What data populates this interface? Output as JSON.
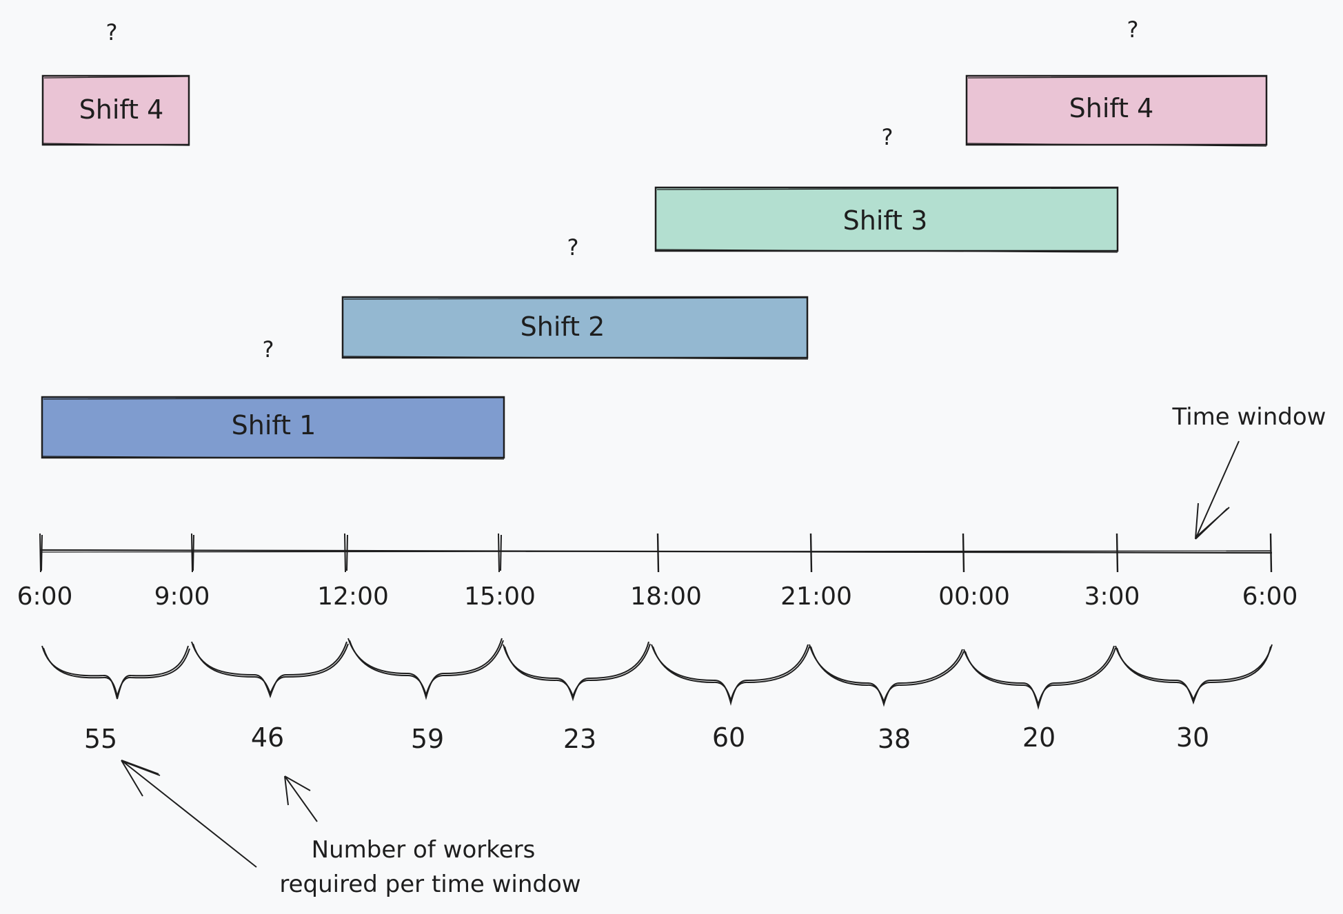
{
  "shifts": [
    {
      "id": "shift-4-early",
      "label": "Shift 4",
      "marker": "?",
      "color": "#eac4d5",
      "start": "6:00",
      "end": "9:00"
    },
    {
      "id": "shift-1",
      "label": "Shift 1",
      "marker": "?",
      "color": "#7f9ccf",
      "start": "6:00",
      "end": "15:00"
    },
    {
      "id": "shift-2",
      "label": "Shift 2",
      "marker": "?",
      "color": "#94b8d1",
      "start": "12:00",
      "end": "21:00"
    },
    {
      "id": "shift-3",
      "label": "Shift 3",
      "marker": "?",
      "color": "#b3dfd0",
      "start": "18:00",
      "end": "3:00"
    },
    {
      "id": "shift-4-late",
      "label": "Shift 4",
      "marker": "?",
      "color": "#eac4d5",
      "start": "00:00",
      "end": "6:00"
    }
  ],
  "timeline": {
    "ticks": [
      "6:00",
      "9:00",
      "12:00",
      "15:00",
      "18:00",
      "21:00",
      "00:00",
      "3:00",
      "6:00"
    ]
  },
  "workers_required": [
    55,
    46,
    59,
    23,
    60,
    38,
    20,
    30
  ],
  "annotations": {
    "time_window": "Time window",
    "workers_line1": "Number of workers",
    "workers_line2": "required per time window"
  },
  "colors": {
    "stroke": "#1e1e1e",
    "background": "#f8f9fa"
  }
}
